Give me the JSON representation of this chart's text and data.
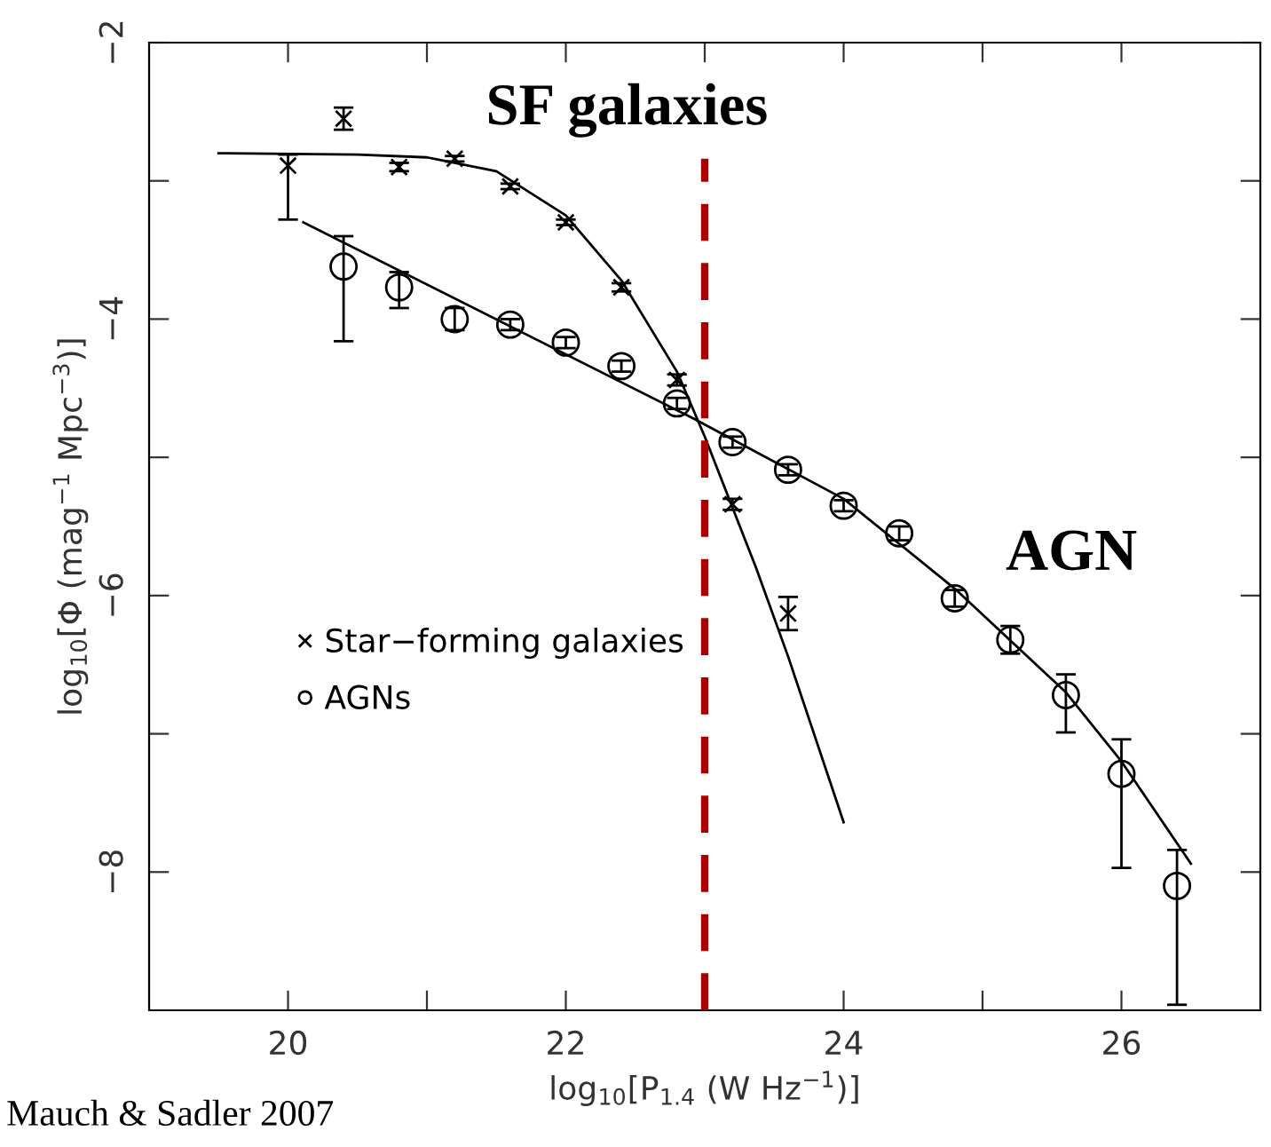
{
  "chart_data": {
    "type": "scatter",
    "xlabel": "log$_{10}$[P$_{1.4}$ (W Hz$^{−1}$)]",
    "ylabel": "log$_{10}$[Φ (mag$^{−1}$ Mpc$^{−3}$)]",
    "xlim": [
      19,
      27
    ],
    "ylim": [
      -9,
      -2
    ],
    "xticks": [
      20,
      {
        "value": 21,
        "label": null
      },
      22,
      {
        "value": 23,
        "label": null
      },
      24,
      {
        "value": 25,
        "label": null
      },
      26
    ],
    "yticks": [
      -8,
      {
        "value": -7,
        "label": null
      },
      -6,
      {
        "value": -5,
        "label": null
      },
      -4,
      {
        "value": -3,
        "label": null
      },
      -2
    ],
    "grid": false,
    "legend": "left",
    "series": [
      {
        "name": "Star−forming galaxies",
        "marker": "cross",
        "color": "#000000",
        "x": [
          20.0,
          20.4,
          20.8,
          21.2,
          21.6,
          22.0,
          22.4,
          22.8,
          23.2,
          23.6
        ],
        "values": [
          -2.89,
          -2.55,
          -2.9,
          -2.84,
          -3.04,
          -3.3,
          -3.77,
          -4.44,
          -5.34,
          -6.13
        ],
        "errors": [
          [
            -3.28,
            -2.81
          ],
          0.08,
          0.03,
          0.02,
          0.02,
          0.02,
          0.03,
          0.04,
          0.04,
          0.12
        ]
      },
      {
        "name": "AGNs",
        "marker": "circle",
        "color": "#000000",
        "x": [
          20.4,
          20.8,
          21.2,
          21.6,
          22.0,
          22.4,
          22.8,
          23.2,
          23.6,
          24.0,
          24.4,
          24.8,
          25.2,
          25.6,
          26.0,
          26.4
        ],
        "values": [
          -3.62,
          -3.77,
          -4.0,
          -4.04,
          -4.17,
          -4.34,
          -4.61,
          -4.89,
          -5.09,
          -5.35,
          -5.55,
          -6.02,
          -6.32,
          -6.72,
          -7.29,
          -8.1
        ],
        "errors": [
          [
            -4.16,
            -3.4
          ],
          [
            -3.92,
            -3.66
          ],
          0.08,
          0.04,
          0.04,
          0.04,
          0.04,
          0.04,
          0.04,
          0.04,
          0.05,
          0.06,
          0.1,
          [
            -6.99,
            -6.57
          ],
          [
            -7.97,
            -7.04
          ],
          [
            -8.96,
            -7.84
          ]
        ]
      },
      {
        "type": "line",
        "marker": "none",
        "line_style": "solid",
        "color": "#000000",
        "x": [
          19.5,
          20.5,
          21.0,
          21.5,
          22.0,
          22.4,
          22.8,
          23.0,
          23.37,
          23.6,
          24.0
        ],
        "values": [
          -2.8,
          -2.81,
          -2.83,
          -2.93,
          -3.25,
          -3.72,
          -4.38,
          -4.85,
          -5.8,
          -6.44,
          -7.64
        ]
      },
      {
        "type": "line",
        "marker": "none",
        "line_style": "solid",
        "color": "#000000",
        "x": [
          20.11,
          22.92,
          24.0,
          24.8,
          25.6,
          26.0,
          26.5
        ],
        "values": [
          -3.3,
          -4.72,
          -5.3,
          -5.95,
          -6.7,
          -7.2,
          -7.94
        ]
      }
    ],
    "ref_lines": [
      {
        "axis": "x",
        "value": 23.0,
        "color": "#aa0000",
        "line_style": "dashed"
      }
    ],
    "annotations": [
      "SF galaxies",
      "AGN",
      "Mauch & Sadler 2007"
    ]
  }
}
